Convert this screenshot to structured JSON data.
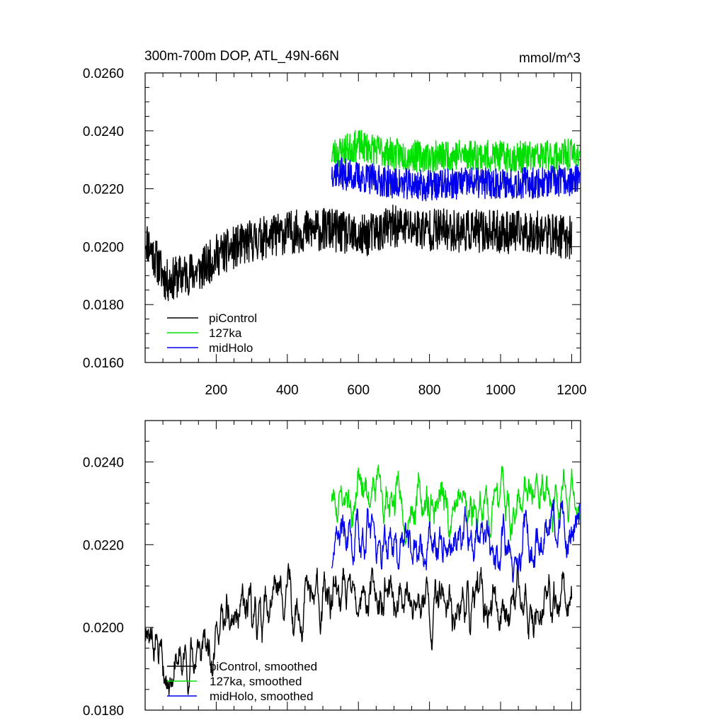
{
  "chart_data": [
    {
      "type": "line",
      "title": "300m-700m DOP, ATL_49N-66N",
      "units": "mmol/m^3",
      "xlim": [
        0,
        1225
      ],
      "ylim": [
        0.016,
        0.026
      ],
      "xticks": [
        200,
        400,
        600,
        800,
        1000,
        1200
      ],
      "xtick_labels": [
        "200",
        "400",
        "600",
        "800",
        "1000",
        "1200"
      ],
      "yticks": [
        0.016,
        0.018,
        0.02,
        0.022,
        0.024,
        0.026
      ],
      "ytick_labels": [
        "0.0160",
        "0.0180",
        "0.0200",
        "0.0220",
        "0.0240",
        "0.0260"
      ],
      "legend_position": "bottom-left",
      "series": [
        {
          "name": "piControl",
          "color": "#000000",
          "x_start": 1,
          "x_end": 1200,
          "anchors": [
            [
              1,
              0.0203
            ],
            [
              60,
              0.0188
            ],
            [
              100,
              0.019
            ],
            [
              160,
              0.0192
            ],
            [
              200,
              0.0197
            ],
            [
              300,
              0.0202
            ],
            [
              400,
              0.0205
            ],
            [
              520,
              0.0206
            ],
            [
              600,
              0.0203
            ],
            [
              700,
              0.0207
            ],
            [
              800,
              0.0206
            ],
            [
              1000,
              0.0205
            ],
            [
              1100,
              0.0205
            ],
            [
              1200,
              0.0203
            ]
          ],
          "noise": 0.00075,
          "seed": 11,
          "smooth": 1
        },
        {
          "name": "127ka",
          "color": "#00e000",
          "x_start": 525,
          "x_end": 1222,
          "anchors": [
            [
              525,
              0.0232
            ],
            [
              600,
              0.0235
            ],
            [
              700,
              0.0232
            ],
            [
              800,
              0.0231
            ],
            [
              900,
              0.0232
            ],
            [
              1000,
              0.0231
            ],
            [
              1100,
              0.0231
            ],
            [
              1222,
              0.0232
            ]
          ],
          "noise": 0.00055,
          "seed": 23,
          "smooth": 1
        },
        {
          "name": "midHolo",
          "color": "#0000ee",
          "x_start": 525,
          "x_end": 1222,
          "anchors": [
            [
              525,
              0.0226
            ],
            [
              600,
              0.0224
            ],
            [
              700,
              0.0222
            ],
            [
              800,
              0.0221
            ],
            [
              900,
              0.0222
            ],
            [
              1000,
              0.0222
            ],
            [
              1100,
              0.0222
            ],
            [
              1222,
              0.0223
            ]
          ],
          "noise": 0.00055,
          "seed": 37,
          "smooth": 1
        }
      ]
    },
    {
      "type": "line",
      "title": "",
      "xlim": [
        0,
        1225
      ],
      "ylim": [
        0.018,
        0.025
      ],
      "xticks": [
        200,
        400,
        600,
        800,
        1000,
        1200
      ],
      "yticks": [
        0.018,
        0.02,
        0.022,
        0.024
      ],
      "ytick_labels": [
        "0.0180",
        "0.0200",
        "0.0220",
        "0.0240"
      ],
      "legend_position": "bottom-left",
      "series": [
        {
          "name": "piControl, smoothed",
          "color": "#000000",
          "x_start": 1,
          "x_end": 1200,
          "anchors": [
            [
              1,
              0.0203
            ],
            [
              60,
              0.019
            ],
            [
              100,
              0.0191
            ],
            [
              160,
              0.0194
            ],
            [
              200,
              0.0199
            ],
            [
              300,
              0.0203
            ],
            [
              400,
              0.0207
            ],
            [
              520,
              0.0206
            ],
            [
              600,
              0.0206
            ],
            [
              700,
              0.0206
            ],
            [
              800,
              0.0206
            ],
            [
              1000,
              0.0206
            ],
            [
              1100,
              0.0206
            ],
            [
              1200,
              0.0206
            ]
          ],
          "noise": 0.00085,
          "seed": 11,
          "smooth": 4
        },
        {
          "name": "127ka, smoothed",
          "color": "#00e000",
          "x_start": 525,
          "x_end": 1222,
          "anchors": [
            [
              525,
              0.0231
            ],
            [
              600,
              0.0233
            ],
            [
              700,
              0.0231
            ],
            [
              800,
              0.023
            ],
            [
              900,
              0.023
            ],
            [
              1000,
              0.023
            ],
            [
              1100,
              0.0231
            ],
            [
              1222,
              0.0231
            ]
          ],
          "noise": 0.0008,
          "seed": 23,
          "smooth": 4
        },
        {
          "name": "midHolo, smoothed",
          "color": "#0000ee",
          "x_start": 525,
          "x_end": 1222,
          "anchors": [
            [
              525,
              0.0224
            ],
            [
              600,
              0.0222
            ],
            [
              700,
              0.022
            ],
            [
              800,
              0.0219
            ],
            [
              900,
              0.022
            ],
            [
              1000,
              0.022
            ],
            [
              1100,
              0.0221
            ],
            [
              1222,
              0.0222
            ]
          ],
          "noise": 0.0008,
          "seed": 37,
          "smooth": 4
        }
      ]
    }
  ]
}
